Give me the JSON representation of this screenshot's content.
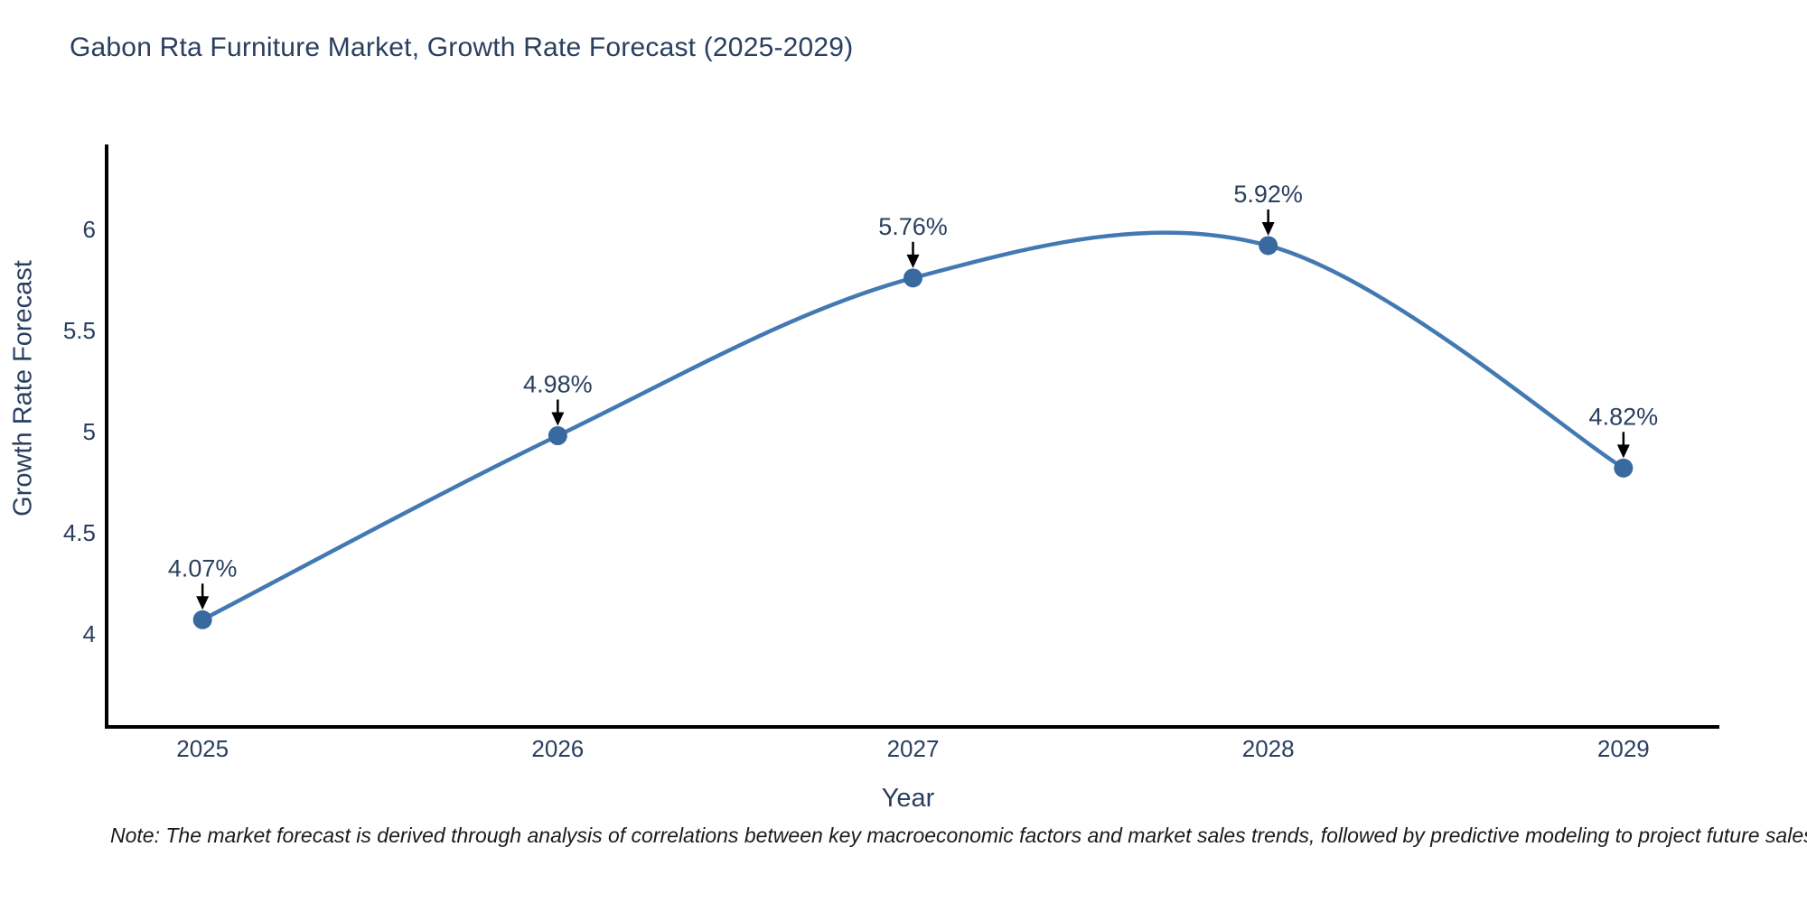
{
  "title": "Gabon Rta Furniture Market, Growth Rate Forecast (2025-2029)",
  "note": "Note: The market forecast is derived through analysis of correlations between key macroeconomic factors and market sales trends, followed by predictive modeling to project future sales",
  "chart_data": {
    "type": "line",
    "title": "Gabon Rta Furniture Market, Growth Rate Forecast (2025-2029)",
    "xlabel": "Year",
    "ylabel": "Growth Rate Forecast",
    "x": [
      2025,
      2026,
      2027,
      2028,
      2029
    ],
    "values": [
      4.07,
      4.98,
      5.76,
      5.92,
      4.82
    ],
    "point_labels": [
      "4.07%",
      "4.98%",
      "5.76%",
      "5.92%",
      "4.82%"
    ],
    "x_ticks": [
      "2025",
      "2026",
      "2027",
      "2028",
      "2029"
    ],
    "y_ticks": [
      "4",
      "4.5",
      "5",
      "5.5",
      "6"
    ],
    "y_tick_values": [
      4,
      4.5,
      5,
      5.5,
      6
    ],
    "xlim": [
      2024.73,
      2029.27
    ],
    "ylim": [
      3.54,
      6.42
    ],
    "line_shape": "spline",
    "grid": false,
    "legend_position": "none",
    "colors": {
      "line": "#4379b2",
      "marker": "#38699f",
      "axis": "#000000",
      "text": "#2a3f5f",
      "annotation_arrow": "#000000",
      "background": "#ffffff"
    }
  }
}
